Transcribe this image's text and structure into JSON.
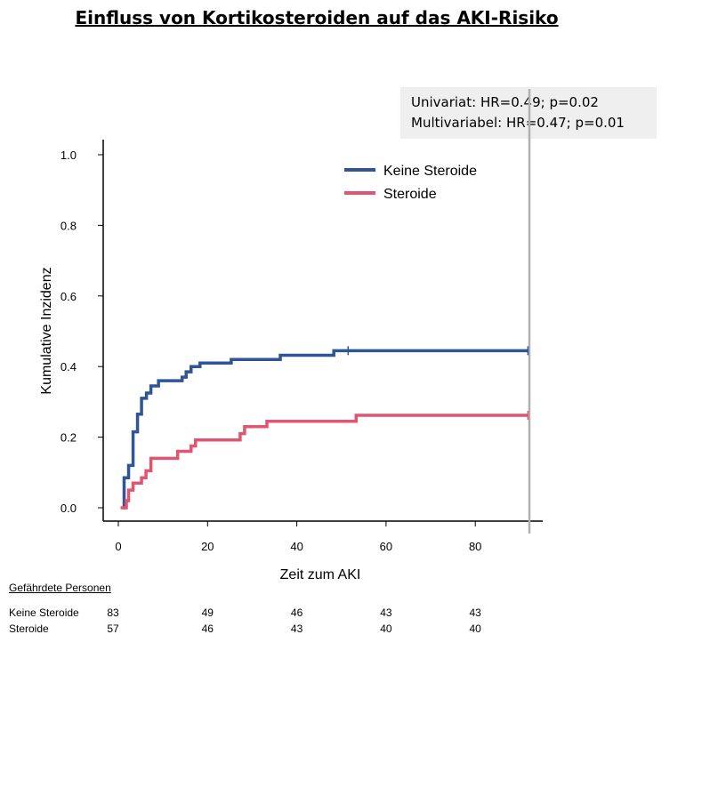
{
  "title": "Einfluss von Kortikosteroiden auf das AKI-Risiko",
  "stats": {
    "line1": "Univariat: HR=0.49; p=0.02",
    "line2": "Multivariabel: HR=0.47; p=0.01"
  },
  "chart_data": {
    "type": "line",
    "step": "post",
    "xlabel": "Zeit zum AKI",
    "ylabel": "Kumulative Inzidenz",
    "xlim": [
      0,
      90
    ],
    "ylim": [
      0,
      1.0
    ],
    "xticks": [
      "0",
      "20",
      "40",
      "60",
      "80"
    ],
    "yticks": [
      "0.0",
      "0.2",
      "0.4",
      "0.6",
      "0.8",
      "1.0"
    ],
    "legend_position": "top-right",
    "grid": false,
    "series": [
      {
        "name": "Keine Steroide",
        "color": "#2f5597",
        "points": [
          [
            1,
            0
          ],
          [
            1.3,
            0.085
          ],
          [
            2.3,
            0.12
          ],
          [
            3.3,
            0.215
          ],
          [
            4.3,
            0.265
          ],
          [
            5.2,
            0.31
          ],
          [
            6.3,
            0.325
          ],
          [
            7.3,
            0.345
          ],
          [
            9,
            0.36
          ],
          [
            14.3,
            0.37
          ],
          [
            15.2,
            0.385
          ],
          [
            16.3,
            0.4
          ],
          [
            18.3,
            0.41
          ],
          [
            25.3,
            0.42
          ],
          [
            36.3,
            0.432
          ],
          [
            48.3,
            0.445
          ],
          [
            91.8,
            0.445
          ]
        ],
        "censor_marks": [
          [
            51.5,
            0.445
          ],
          [
            91.8,
            0.445
          ]
        ]
      },
      {
        "name": "Steroide",
        "color": "#e05570",
        "points": [
          [
            0.5,
            0
          ],
          [
            1.8,
            0.02
          ],
          [
            2.3,
            0.05
          ],
          [
            3.3,
            0.07
          ],
          [
            5.2,
            0.085
          ],
          [
            6.2,
            0.105
          ],
          [
            7.3,
            0.14
          ],
          [
            13.3,
            0.16
          ],
          [
            16.3,
            0.175
          ],
          [
            17.3,
            0.192
          ],
          [
            27.3,
            0.21
          ],
          [
            28.3,
            0.23
          ],
          [
            33.3,
            0.245
          ],
          [
            53.3,
            0.262
          ],
          [
            91.8,
            0.262
          ]
        ],
        "censor_marks": [
          [
            91.8,
            0.262
          ]
        ]
      }
    ]
  },
  "risk_table": {
    "header": "Gefährdete Personen",
    "times": [
      0,
      20,
      40,
      60,
      80
    ],
    "rows": [
      {
        "label": "Keine Steroide",
        "values": [
          "83",
          "49",
          "46",
          "43",
          "43"
        ]
      },
      {
        "label": "Steroide",
        "values": [
          "57",
          "46",
          "43",
          "40",
          "40"
        ]
      }
    ]
  }
}
